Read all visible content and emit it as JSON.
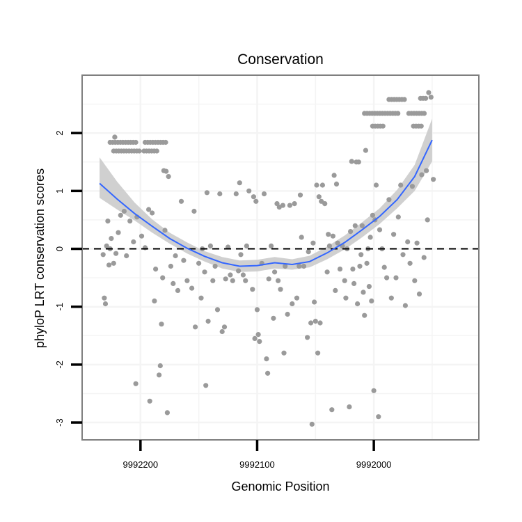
{
  "chart_data": {
    "type": "scatter",
    "title": "Conservation",
    "xlabel": "Genomic Position",
    "ylabel": "phyloP LRT conservation scores",
    "x_reversed": true,
    "xlim": [
      9992250,
      9991910
    ],
    "ylim": [
      -3.3,
      3.0
    ],
    "xticks": [
      9992200,
      9992100,
      9992000
    ],
    "xtick_labels": [
      "9992200",
      "9992100",
      "9992000"
    ],
    "yticks": [
      -3,
      -2,
      -1,
      0,
      1,
      2
    ],
    "ytick_labels": [
      "-3",
      "-2",
      "-1",
      "0",
      "1",
      "2"
    ],
    "grid": true,
    "reference_line": {
      "y": 0,
      "style": "dashed"
    },
    "colors": {
      "points": "#9a9a9a",
      "smooth": "#3366ff",
      "ribbon": "#c8c8c8",
      "panel_border": "#7f7f7f",
      "grid": "#f4f4f4"
    },
    "series": [
      {
        "kind": "points",
        "points": [
          [
            9992232,
            -0.1
          ],
          [
            9992231,
            -0.85
          ],
          [
            9992230,
            -0.95
          ],
          [
            9992229,
            0.05
          ],
          [
            9992228,
            0.48
          ],
          [
            9992227,
            -0.28
          ],
          [
            9992226,
            0.0
          ],
          [
            9992225,
            0.18
          ],
          [
            9992223,
            -0.25
          ],
          [
            9992221,
            -0.08
          ],
          [
            9992219,
            0.28
          ],
          [
            9992217,
            0.58
          ],
          [
            9992214,
            0.65
          ],
          [
            9992212,
            -0.12
          ],
          [
            9992209,
            0.48
          ],
          [
            9992206,
            0.12
          ],
          [
            9992204,
            -2.33
          ],
          [
            9992203,
            0.55
          ],
          [
            9992199,
            0.22
          ],
          [
            9992196,
            0.02
          ],
          [
            9992193,
            0.68
          ],
          [
            9992192,
            -2.63
          ],
          [
            9992190,
            0.62
          ],
          [
            9992188,
            -0.9
          ],
          [
            9992187,
            -0.35
          ],
          [
            9992184,
            -2.18
          ],
          [
            9992183,
            -2.02
          ],
          [
            9992182,
            -1.3
          ],
          [
            9992181,
            -0.5
          ],
          [
            9992180,
            1.35
          ],
          [
            9992179,
            0.32
          ],
          [
            9992178,
            1.34
          ],
          [
            9992177,
            -2.83
          ],
          [
            9992176,
            1.25
          ],
          [
            9992174,
            -0.3
          ],
          [
            9992172,
            -0.6
          ],
          [
            9992170,
            -0.12
          ],
          [
            9992168,
            -0.72
          ],
          [
            9992165,
            0.82
          ],
          [
            9992163,
            -0.2
          ],
          [
            9992160,
            -0.55
          ],
          [
            9992156,
            -0.68
          ],
          [
            9992154,
            0.65
          ],
          [
            9992153,
            -1.35
          ],
          [
            9992150,
            -0.25
          ],
          [
            9992148,
            -0.85
          ],
          [
            9992147,
            0.0
          ],
          [
            9992145,
            -0.4
          ],
          [
            9992144,
            -2.36
          ],
          [
            9992143,
            0.97
          ],
          [
            9992142,
            -1.25
          ],
          [
            9992140,
            0.05
          ],
          [
            9992138,
            -0.55
          ],
          [
            9992136,
            -0.3
          ],
          [
            9992134,
            -1.05
          ],
          [
            9992132,
            0.95
          ],
          [
            9992130,
            -1.43
          ],
          [
            9992128,
            -1.35
          ],
          [
            9992127,
            -0.52
          ],
          [
            9992125,
            0.03
          ],
          [
            9992123,
            -0.45
          ],
          [
            9992121,
            -0.55
          ],
          [
            9992118,
            0.95
          ],
          [
            9992116,
            -0.38
          ],
          [
            9992115,
            1.14
          ],
          [
            9992114,
            -0.1
          ],
          [
            9992112,
            -0.45
          ],
          [
            9992110,
            -0.55
          ],
          [
            9992109,
            0.05
          ],
          [
            9992107,
            1.0
          ],
          [
            9992104,
            -0.7
          ],
          [
            9992103,
            0.9
          ],
          [
            9992102,
            -1.55
          ],
          [
            9992101,
            0.82
          ],
          [
            9992100,
            -1.05
          ],
          [
            9992099,
            -1.48
          ],
          [
            9992098,
            -1.6
          ],
          [
            9992096,
            -0.25
          ],
          [
            9992094,
            0.95
          ],
          [
            9992092,
            -1.9
          ],
          [
            9992091,
            -2.15
          ],
          [
            9992090,
            -0.52
          ],
          [
            9992088,
            0.05
          ],
          [
            9992086,
            -1.2
          ],
          [
            9992085,
            -0.4
          ],
          [
            9992083,
            0.78
          ],
          [
            9992082,
            -0.55
          ],
          [
            9992081,
            0.72
          ],
          [
            9992080,
            -0.7
          ],
          [
            9992078,
            0.75
          ],
          [
            9992077,
            -1.8
          ],
          [
            9992076,
            -0.3
          ],
          [
            9992074,
            -1.13
          ],
          [
            9992072,
            0.75
          ],
          [
            9992070,
            -0.95
          ],
          [
            9992068,
            0.78
          ],
          [
            9992066,
            -0.85
          ],
          [
            9992064,
            -0.3
          ],
          [
            9992063,
            0.93
          ],
          [
            9992062,
            0.2
          ],
          [
            9992060,
            -0.3
          ],
          [
            9992057,
            -1.53
          ],
          [
            9992056,
            -0.05
          ],
          [
            9992054,
            -1.28
          ],
          [
            9992053,
            -3.03
          ],
          [
            9992052,
            0.1
          ],
          [
            9992051,
            -0.92
          ],
          [
            9992050,
            -1.25
          ],
          [
            9992049,
            1.1
          ],
          [
            9992048,
            -1.8
          ],
          [
            9992047,
            0.9
          ],
          [
            9992046,
            -1.28
          ],
          [
            9992045,
            0.82
          ],
          [
            9992044,
            1.1
          ],
          [
            9992042,
            0.78
          ],
          [
            9992040,
            -0.4
          ],
          [
            9992039,
            0.25
          ],
          [
            9992038,
            0.05
          ],
          [
            9992036,
            -2.78
          ],
          [
            9992035,
            0.22
          ],
          [
            9992034,
            1.27
          ],
          [
            9992033,
            -0.72
          ],
          [
            9992032,
            1.12
          ],
          [
            9992031,
            0.1
          ],
          [
            9992029,
            -0.35
          ],
          [
            9992027,
            0.05
          ],
          [
            9992025,
            -0.55
          ],
          [
            9992024,
            -0.85
          ],
          [
            9992023,
            0.0
          ],
          [
            9992021,
            -2.73
          ],
          [
            9992020,
            0.3
          ],
          [
            9992019,
            1.51
          ],
          [
            9992018,
            -0.35
          ],
          [
            9992017,
            -0.6
          ],
          [
            9992016,
            0.4
          ],
          [
            9992015,
            1.5
          ],
          [
            9992014,
            -0.95
          ],
          [
            9992013,
            1.5
          ],
          [
            9992012,
            -0.3
          ],
          [
            9992011,
            -0.1
          ],
          [
            9992010,
            0.4
          ],
          [
            9992009,
            -0.75
          ],
          [
            9992008,
            -1.15
          ],
          [
            9992007,
            1.7
          ],
          [
            9992006,
            -0.25
          ],
          [
            9992005,
            0.0
          ],
          [
            9992004,
            -0.65
          ],
          [
            9992003,
            0.2
          ],
          [
            9992002,
            -0.9
          ],
          [
            9992001,
            0.58
          ],
          [
            9992000,
            -2.45
          ],
          [
            9991999,
            0.5
          ],
          [
            9991998,
            1.1
          ],
          [
            9991996,
            -2.9
          ],
          [
            9991995,
            0.33
          ],
          [
            9991993,
            0.0
          ],
          [
            9991991,
            -0.32
          ],
          [
            9991989,
            -0.5
          ],
          [
            9991987,
            0.85
          ],
          [
            9991985,
            -0.85
          ],
          [
            9991983,
            0.25
          ],
          [
            9991981,
            -0.5
          ],
          [
            9991979,
            0.55
          ],
          [
            9991977,
            1.1
          ],
          [
            9991975,
            -0.1
          ],
          [
            9991973,
            -0.98
          ],
          [
            9991971,
            0.12
          ],
          [
            9991969,
            -0.25
          ],
          [
            9991967,
            1.08
          ],
          [
            9991965,
            -0.55
          ],
          [
            9991963,
            0.1
          ],
          [
            9991961,
            -0.78
          ],
          [
            9991959,
            1.28
          ],
          [
            9991957,
            -0.15
          ],
          [
            9991955,
            1.35
          ],
          [
            9991954,
            0.5
          ],
          [
            9991953,
            2.7
          ],
          [
            9991951,
            2.62
          ],
          [
            9991949,
            1.2
          ]
        ]
      },
      {
        "kind": "point-runs",
        "runs": [
          {
            "x": [
              9992226,
              9992202
            ],
            "y": 1.84
          },
          {
            "x": [
              9992222,
              9992222
            ],
            "y": 1.93
          },
          {
            "x": [
              9992223,
              9992200
            ],
            "y": 1.69
          },
          {
            "x": [
              9992196,
              9992178
            ],
            "y": 1.84
          },
          {
            "x": [
              9992197,
              9992184
            ],
            "y": 1.69
          },
          {
            "x": [
              9992008,
              9991978
            ],
            "y": 2.34
          },
          {
            "x": [
              9992001,
              9991991
            ],
            "y": 2.12
          },
          {
            "x": [
              9991987,
              9991972
            ],
            "y": 2.58
          },
          {
            "x": [
              9991970,
              9991955
            ],
            "y": 2.34
          },
          {
            "x": [
              9991966,
              9991959
            ],
            "y": 2.12
          },
          {
            "x": [
              9991960,
              9991955
            ],
            "y": 2.6
          }
        ]
      },
      {
        "kind": "smooth",
        "x": [
          9992235,
          9992220,
          9992205,
          9992190,
          9992175,
          9992160,
          9992145,
          9992130,
          9992115,
          9992100,
          9992085,
          9992070,
          9992055,
          9992040,
          9992025,
          9992010,
          9991995,
          9991980,
          9991965,
          9991950
        ],
        "y": [
          1.13,
          0.86,
          0.61,
          0.39,
          0.18,
          0.01,
          -0.13,
          -0.24,
          -0.3,
          -0.29,
          -0.24,
          -0.27,
          -0.22,
          -0.07,
          0.11,
          0.33,
          0.56,
          0.85,
          1.25,
          1.88
        ],
        "ymin": [
          0.88,
          0.68,
          0.49,
          0.28,
          0.09,
          -0.08,
          -0.22,
          -0.34,
          -0.4,
          -0.39,
          -0.34,
          -0.36,
          -0.32,
          -0.18,
          -0.01,
          0.2,
          0.43,
          0.7,
          1.0,
          1.51
        ],
        "ymax": [
          1.58,
          1.16,
          0.8,
          0.51,
          0.28,
          0.11,
          -0.04,
          -0.14,
          -0.2,
          -0.19,
          -0.14,
          -0.18,
          -0.12,
          0.04,
          0.23,
          0.46,
          0.7,
          1.02,
          1.45,
          2.25
        ]
      }
    ]
  }
}
